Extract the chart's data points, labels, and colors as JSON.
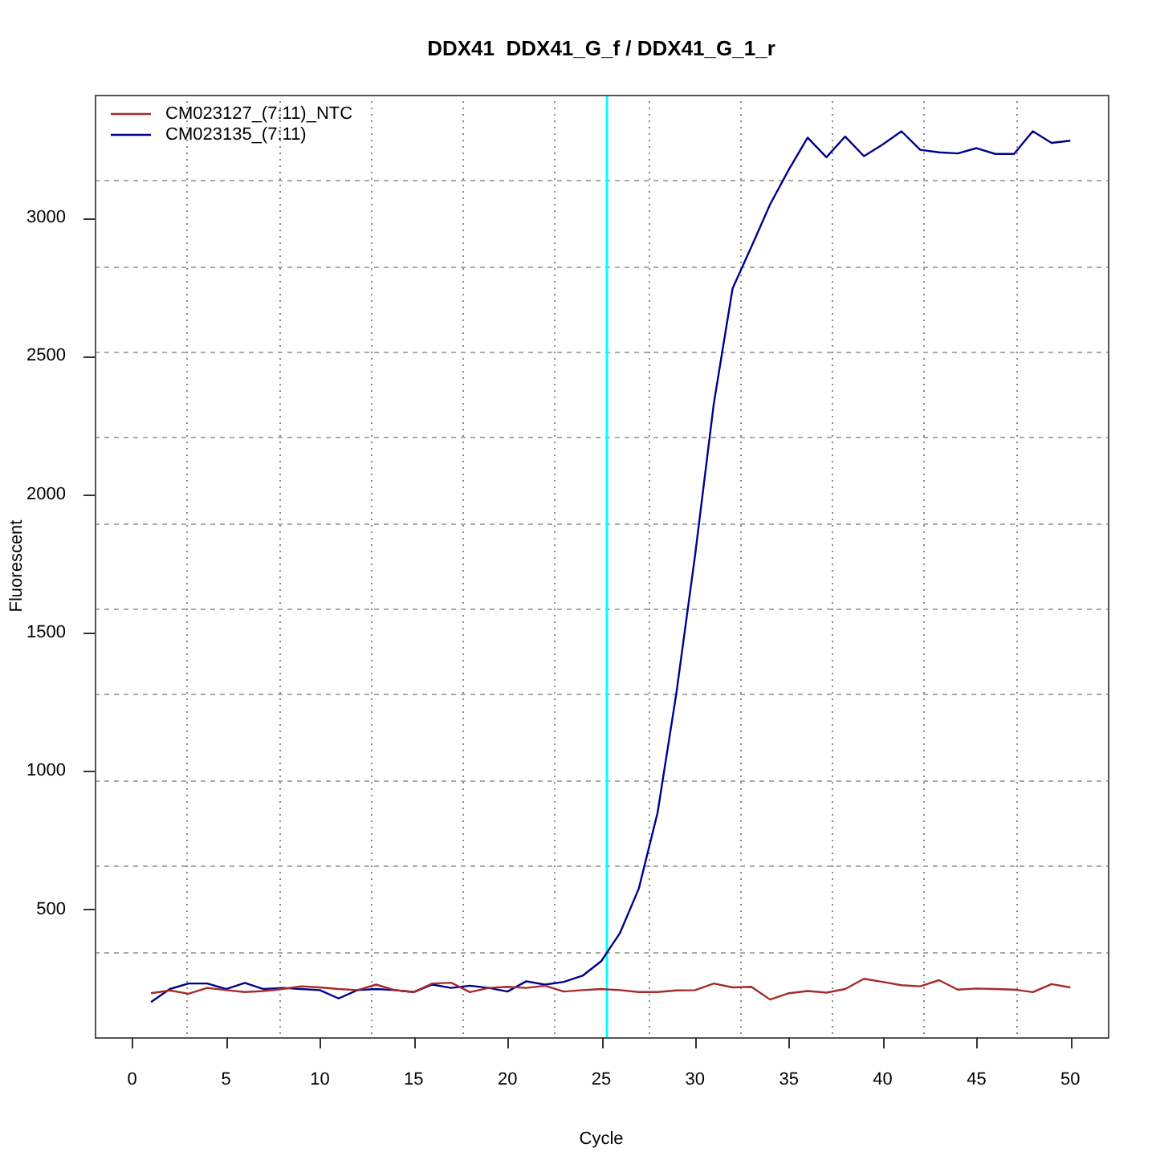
{
  "chart_data": {
    "type": "line",
    "title": "DDX41  DDX41_G_f / DDX41_G_1_r",
    "xlabel": "Cycle",
    "ylabel": "Fluorescent",
    "x": [
      1,
      2,
      3,
      4,
      5,
      6,
      7,
      8,
      9,
      10,
      11,
      12,
      13,
      14,
      15,
      16,
      17,
      18,
      19,
      20,
      21,
      22,
      23,
      24,
      25,
      26,
      27,
      28,
      29,
      30,
      31,
      32,
      33,
      34,
      35,
      36,
      37,
      38,
      39,
      40,
      41,
      42,
      43,
      44,
      45,
      46,
      47,
      48,
      49,
      50
    ],
    "series": [
      {
        "name": "CM023127_(7:11)_NTC",
        "color": "#a52a2a",
        "values": [
          197,
          207,
          195,
          216,
          208,
          201,
          205,
          212,
          222,
          218,
          212,
          208,
          228,
          208,
          201,
          232,
          235,
          201,
          216,
          220,
          216,
          224,
          203,
          208,
          212,
          208,
          201,
          201,
          207,
          208,
          232,
          218,
          220,
          174,
          197,
          205,
          199,
          212,
          249,
          238,
          226,
          222,
          244,
          210,
          214,
          212,
          210,
          201,
          230,
          218
        ]
      },
      {
        "name": "CM023135_(7:11)",
        "color": "#00008b",
        "values": [
          165,
          212,
          232,
          232,
          212,
          234,
          212,
          216,
          212,
          208,
          178,
          208,
          212,
          208,
          201,
          228,
          216,
          224,
          216,
          203,
          240,
          228,
          238,
          260,
          313,
          415,
          575,
          849,
          1280,
          1780,
          2329,
          2744,
          2894,
          3048,
          3174,
          3289,
          3218,
          3293,
          3222,
          3264,
          3312,
          3245,
          3236,
          3232,
          3251,
          3230,
          3230,
          3312,
          3270,
          3278
        ]
      }
    ],
    "xlim": [
      -2,
      52
    ],
    "xticks": [
      0,
      {
        "value": 2.9,
        "label": null
      },
      5,
      {
        "value": 7.8,
        "label": null
      },
      10,
      {
        "value": 12.7,
        "label": null
      },
      15,
      {
        "value": 17.6,
        "label": null
      },
      20,
      {
        "value": 22.5,
        "label": null
      },
      25,
      {
        "value": 27.5,
        "label": null
      },
      30,
      {
        "value": 32.4,
        "label": null
      },
      35,
      {
        "value": 37.3,
        "label": null
      },
      40,
      {
        "value": 42.2,
        "label": null
      },
      45,
      {
        "value": 47.1,
        "label": null
      },
      50
    ],
    "ylim": [
      38,
      3444
    ],
    "yticks": [
      {
        "value": 348,
        "label": null
      },
      500,
      {
        "value": 658,
        "label": null
      },
      {
        "value": 967,
        "label": null
      },
      1000,
      {
        "value": 1277,
        "label": null
      },
      1500,
      {
        "value": 1586,
        "label": null
      },
      {
        "value": 1896,
        "label": null
      },
      2000,
      {
        "value": 2206,
        "label": null
      },
      2500,
      {
        "value": 2515,
        "label": null
      },
      {
        "value": 2825,
        "label": null
      },
      3000,
      {
        "value": 3134,
        "label": null
      }
    ],
    "ref_lines": [
      {
        "axis": "x",
        "value": 25.3,
        "color": "#00ffff"
      }
    ],
    "grid": true,
    "legend": "top left",
    "marker": "none",
    "line_style": "solid"
  }
}
